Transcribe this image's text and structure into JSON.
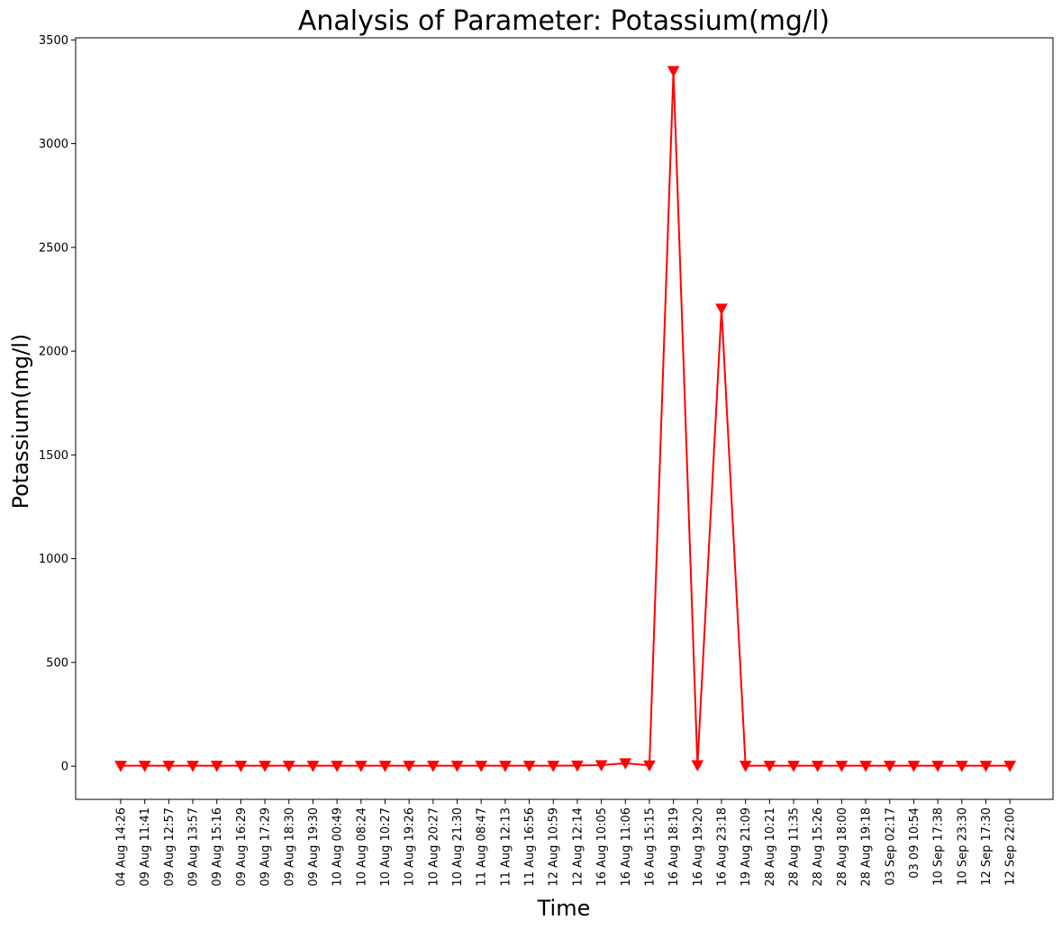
{
  "chart_data": {
    "type": "line",
    "title": "Analysis of Parameter: Potassium(mg/l)",
    "xlabel": "Time",
    "ylabel": "Potassium(mg/l)",
    "ylim": [
      -160,
      3510
    ],
    "yticks": [
      0,
      500,
      1000,
      1500,
      2000,
      2500,
      3000,
      3500
    ],
    "grid": false,
    "marker": "triangle-down",
    "color": "#ff0000",
    "categories": [
      "04 Aug 14:26",
      "09 Aug 11:41",
      "09 Aug 12:57",
      "09 Aug 13:57",
      "09 Aug 15:16",
      "09 Aug 16:29",
      "09 Aug 17:29",
      "09 Aug 18:30",
      "09 Aug 19:30",
      "10 Aug 00:49",
      "10 Aug 08:24",
      "10 Aug 10:27",
      "10 Aug 19:26",
      "10 Aug 20:27",
      "10 Aug 21:30",
      "11 Aug 08:47",
      "11 Aug 12:13",
      "11 Aug 16:56",
      "12 Aug 10:59",
      "12 Aug 12:14",
      "16 Aug 10:05",
      "16 Aug 11:06",
      "16 Aug 15:15",
      "16 Aug 18:19",
      "16 Aug 19:20",
      "16 Aug 23:18",
      "19 Aug 21:09",
      "28 Aug 10:21",
      "28 Aug 11:35",
      "28 Aug 15:26",
      "28 Aug 18:00",
      "28 Aug 19:18",
      "03 Sep 02:17",
      "03 09 10:54",
      "10 Sep 17:38",
      "10 Sep 23:30",
      "12 Sep 17:30",
      "12 Sep 22:00"
    ],
    "series": [
      {
        "values": [
          2,
          2,
          2,
          2,
          2,
          2,
          2,
          2,
          2,
          2,
          2,
          2,
          2,
          2,
          2,
          2,
          2,
          2,
          2,
          3,
          5,
          14,
          4,
          3350,
          5,
          2205,
          2,
          2,
          2,
          2,
          2,
          2,
          2,
          2,
          2,
          2,
          2,
          2
        ]
      }
    ]
  }
}
